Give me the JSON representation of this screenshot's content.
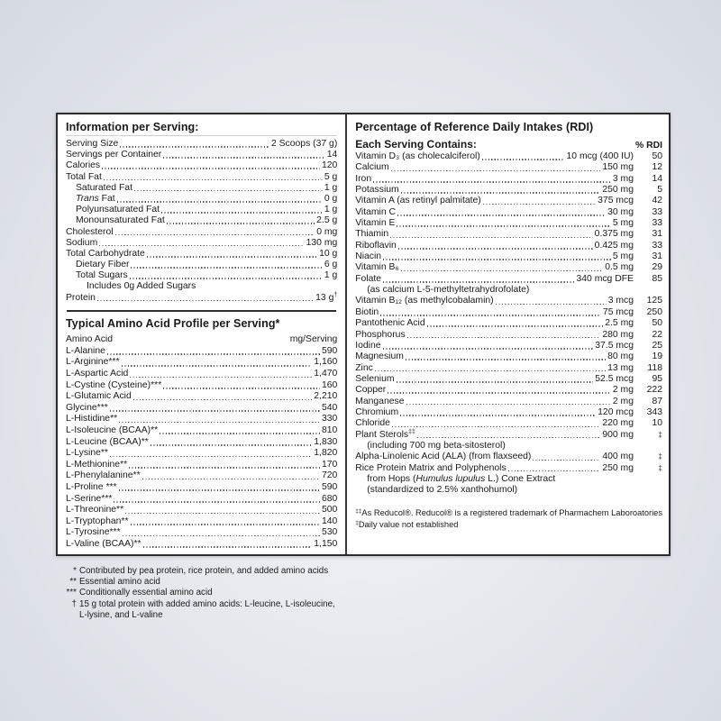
{
  "colors": {
    "panel_border": "#2c2c2c",
    "text": "#1a1a1a",
    "dots": "#5a5a5a"
  },
  "info": {
    "title": "Information per Serving:",
    "rows": [
      {
        "label": "Serving Size",
        "value": "2 Scoops (37 g)"
      },
      {
        "label": "Servings per Container",
        "value": "14"
      },
      {
        "label": "Calories",
        "value": "120"
      },
      {
        "label": "Total Fat",
        "value": "5 g"
      },
      {
        "label": "Saturated Fat",
        "value": "1 g",
        "indent": 1
      },
      {
        "label_italic": "Trans",
        "label": " Fat",
        "value": "0 g",
        "indent": 1
      },
      {
        "label": "Polyunsaturated Fat",
        "value": "1 g",
        "indent": 1
      },
      {
        "label": "Monounsaturated Fat",
        "value": "2.5 g",
        "indent": 1
      },
      {
        "label": "Cholesterol",
        "value": "0 mg"
      },
      {
        "label": "Sodium",
        "value": "130 mg"
      },
      {
        "label": "Total Carbohydrate",
        "value": "10 g"
      },
      {
        "label": "Dietary Fiber",
        "value": "6 g",
        "indent": 1
      },
      {
        "label": "Total Sugars",
        "value": "1 g",
        "indent": 1
      },
      {
        "label": "Includes 0g Added Sugars",
        "indent": 2,
        "no_leader": true
      },
      {
        "label": "Protein",
        "value": "13 g",
        "value_sup": "†"
      }
    ]
  },
  "amino": {
    "title": "Typical Amino Acid Profile per Serving*",
    "col_label": "Amino Acid",
    "col_value": "mg/Serving",
    "rows": [
      {
        "label": "L-Alanine",
        "value": "590"
      },
      {
        "label": "L-Arginine***",
        "value": "1,160"
      },
      {
        "label": "L-Aspartic Acid",
        "value": "1,470"
      },
      {
        "label": "L-Cystine (Cysteine)***",
        "value": "160"
      },
      {
        "label": "L-Glutamic Acid",
        "value": "2,210"
      },
      {
        "label": "Glycine***",
        "value": "540"
      },
      {
        "label": "L-Histidine**",
        "value": "330"
      },
      {
        "label": "L-Isoleucine (BCAA)**",
        "value": "810"
      },
      {
        "label": "L-Leucine (BCAA)**",
        "value": "1,830"
      },
      {
        "label": "L-Lysine**",
        "value": "1,820"
      },
      {
        "label": "L-Methionine**",
        "value": "170"
      },
      {
        "label": "L-Phenylalanine**",
        "value": "720"
      },
      {
        "label": "L-Proline ***",
        "value": "590"
      },
      {
        "label": "L-Serine***",
        "value": "680"
      },
      {
        "label": "L-Threonine**",
        "value": "500"
      },
      {
        "label": "L-Tryptophan**",
        "value": "140"
      },
      {
        "label": "L-Tyrosine***",
        "value": "530"
      },
      {
        "label": "L-Valine (BCAA)**",
        "value": "1,150"
      }
    ]
  },
  "rdi": {
    "title": "Percentage of Reference Daily Intakes (RDI)",
    "subtitle": "Each Serving Contains:",
    "col_rdi": "% RDI",
    "rows": [
      {
        "label": "Vitamin D₃ (as cholecalciferol)",
        "value": "10 mcg (400 IU)",
        "rdi": "50"
      },
      {
        "label": "Calcium",
        "value": "150 mg",
        "rdi": "12"
      },
      {
        "label": "Iron",
        "value": "3 mg",
        "rdi": "14"
      },
      {
        "label": "Potassium",
        "value": "250 mg",
        "rdi": "5"
      },
      {
        "label": "Vitamin A (as retinyl palmitate)",
        "value": "375 mcg",
        "rdi": "42"
      },
      {
        "label": "Vitamin C",
        "value": "30 mg",
        "rdi": "33"
      },
      {
        "label": "Vitamin E",
        "value": "5 mg",
        "rdi": "33"
      },
      {
        "label": "Thiamin",
        "value": "0.375 mg",
        "rdi": "31"
      },
      {
        "label": "Riboflavin",
        "value": "0.425 mg",
        "rdi": "33"
      },
      {
        "label": "Niacin",
        "value": "5 mg",
        "rdi": "31"
      },
      {
        "label": "Vitamin B₆",
        "value": "0.5 mg",
        "rdi": "29"
      },
      {
        "label": "Folate",
        "value": "340 mcg DFE",
        "rdi": "85",
        "continuations": [
          {
            "pre": "(as calcium L-5-methyltetrahydrofolate)"
          }
        ]
      },
      {
        "label": "Vitamin B₁₂ (as methylcobalamin)",
        "value": "3 mcg",
        "rdi": "125"
      },
      {
        "label": "Biotin",
        "value": "75 mcg",
        "rdi": "250"
      },
      {
        "label": "Pantothenic Acid",
        "value": "2.5 mg",
        "rdi": "50"
      },
      {
        "label": "Phosphorus",
        "value": "280 mg",
        "rdi": "22"
      },
      {
        "label": "Iodine",
        "value": "37.5 mcg",
        "rdi": "25"
      },
      {
        "label": "Magnesium",
        "value": "80 mg",
        "rdi": "19"
      },
      {
        "label": "Zinc",
        "value": "13 mg",
        "rdi": "118"
      },
      {
        "label": "Selenium",
        "value": "52.5 mcg",
        "rdi": "95"
      },
      {
        "label": "Copper",
        "value": "2 mg",
        "rdi": "222"
      },
      {
        "label": "Manganese",
        "value": "2 mg",
        "rdi": "87"
      },
      {
        "label": "Chromium",
        "value": "120 mcg",
        "rdi": "343"
      },
      {
        "label": "Chloride",
        "value": "220 mg",
        "rdi": "10"
      },
      {
        "label": "Plant Sterols",
        "label_sup": "‡‡",
        "value": "900 mg",
        "rdi": "‡",
        "rdi_is_symbol": true,
        "continuations": [
          {
            "pre": "(including 700 mg beta-sitosterol)"
          }
        ]
      },
      {
        "label": "Alpha-Linolenic Acid (ALA) (from flaxseed)",
        "value": "400 mg",
        "rdi": "‡",
        "rdi_is_symbol": true
      },
      {
        "label": "Rice Protein Matrix and Polyphenols",
        "value": "250 mg",
        "rdi": "‡",
        "rdi_is_symbol": true,
        "continuations": [
          {
            "pre": "from Hops (",
            "italic": "Humulus lupulus",
            "post": " L.) Cone Extract"
          },
          {
            "pre": "(standardized to 2.5% xanthohumol)"
          }
        ]
      }
    ],
    "footnotes": [
      {
        "sup": "‡‡",
        "text": "As Reducol®. Reducol® is a registered trademark of Pharmachem Laboroatories"
      },
      {
        "sup": "‡",
        "text": "Daily value not established"
      }
    ]
  },
  "bottom_footnotes": [
    {
      "marker": "*",
      "lines": [
        "Contributed by pea protein, rice protein, and added amino acids"
      ]
    },
    {
      "marker": "**",
      "lines": [
        "Essential amino acid"
      ]
    },
    {
      "marker": "***",
      "lines": [
        "Conditionally essential amino acid"
      ]
    },
    {
      "marker": "†",
      "lines": [
        "15 g total protein with added amino acids: L-leucine, L-isoleucine,",
        "L-lysine, and L-valine"
      ]
    }
  ]
}
